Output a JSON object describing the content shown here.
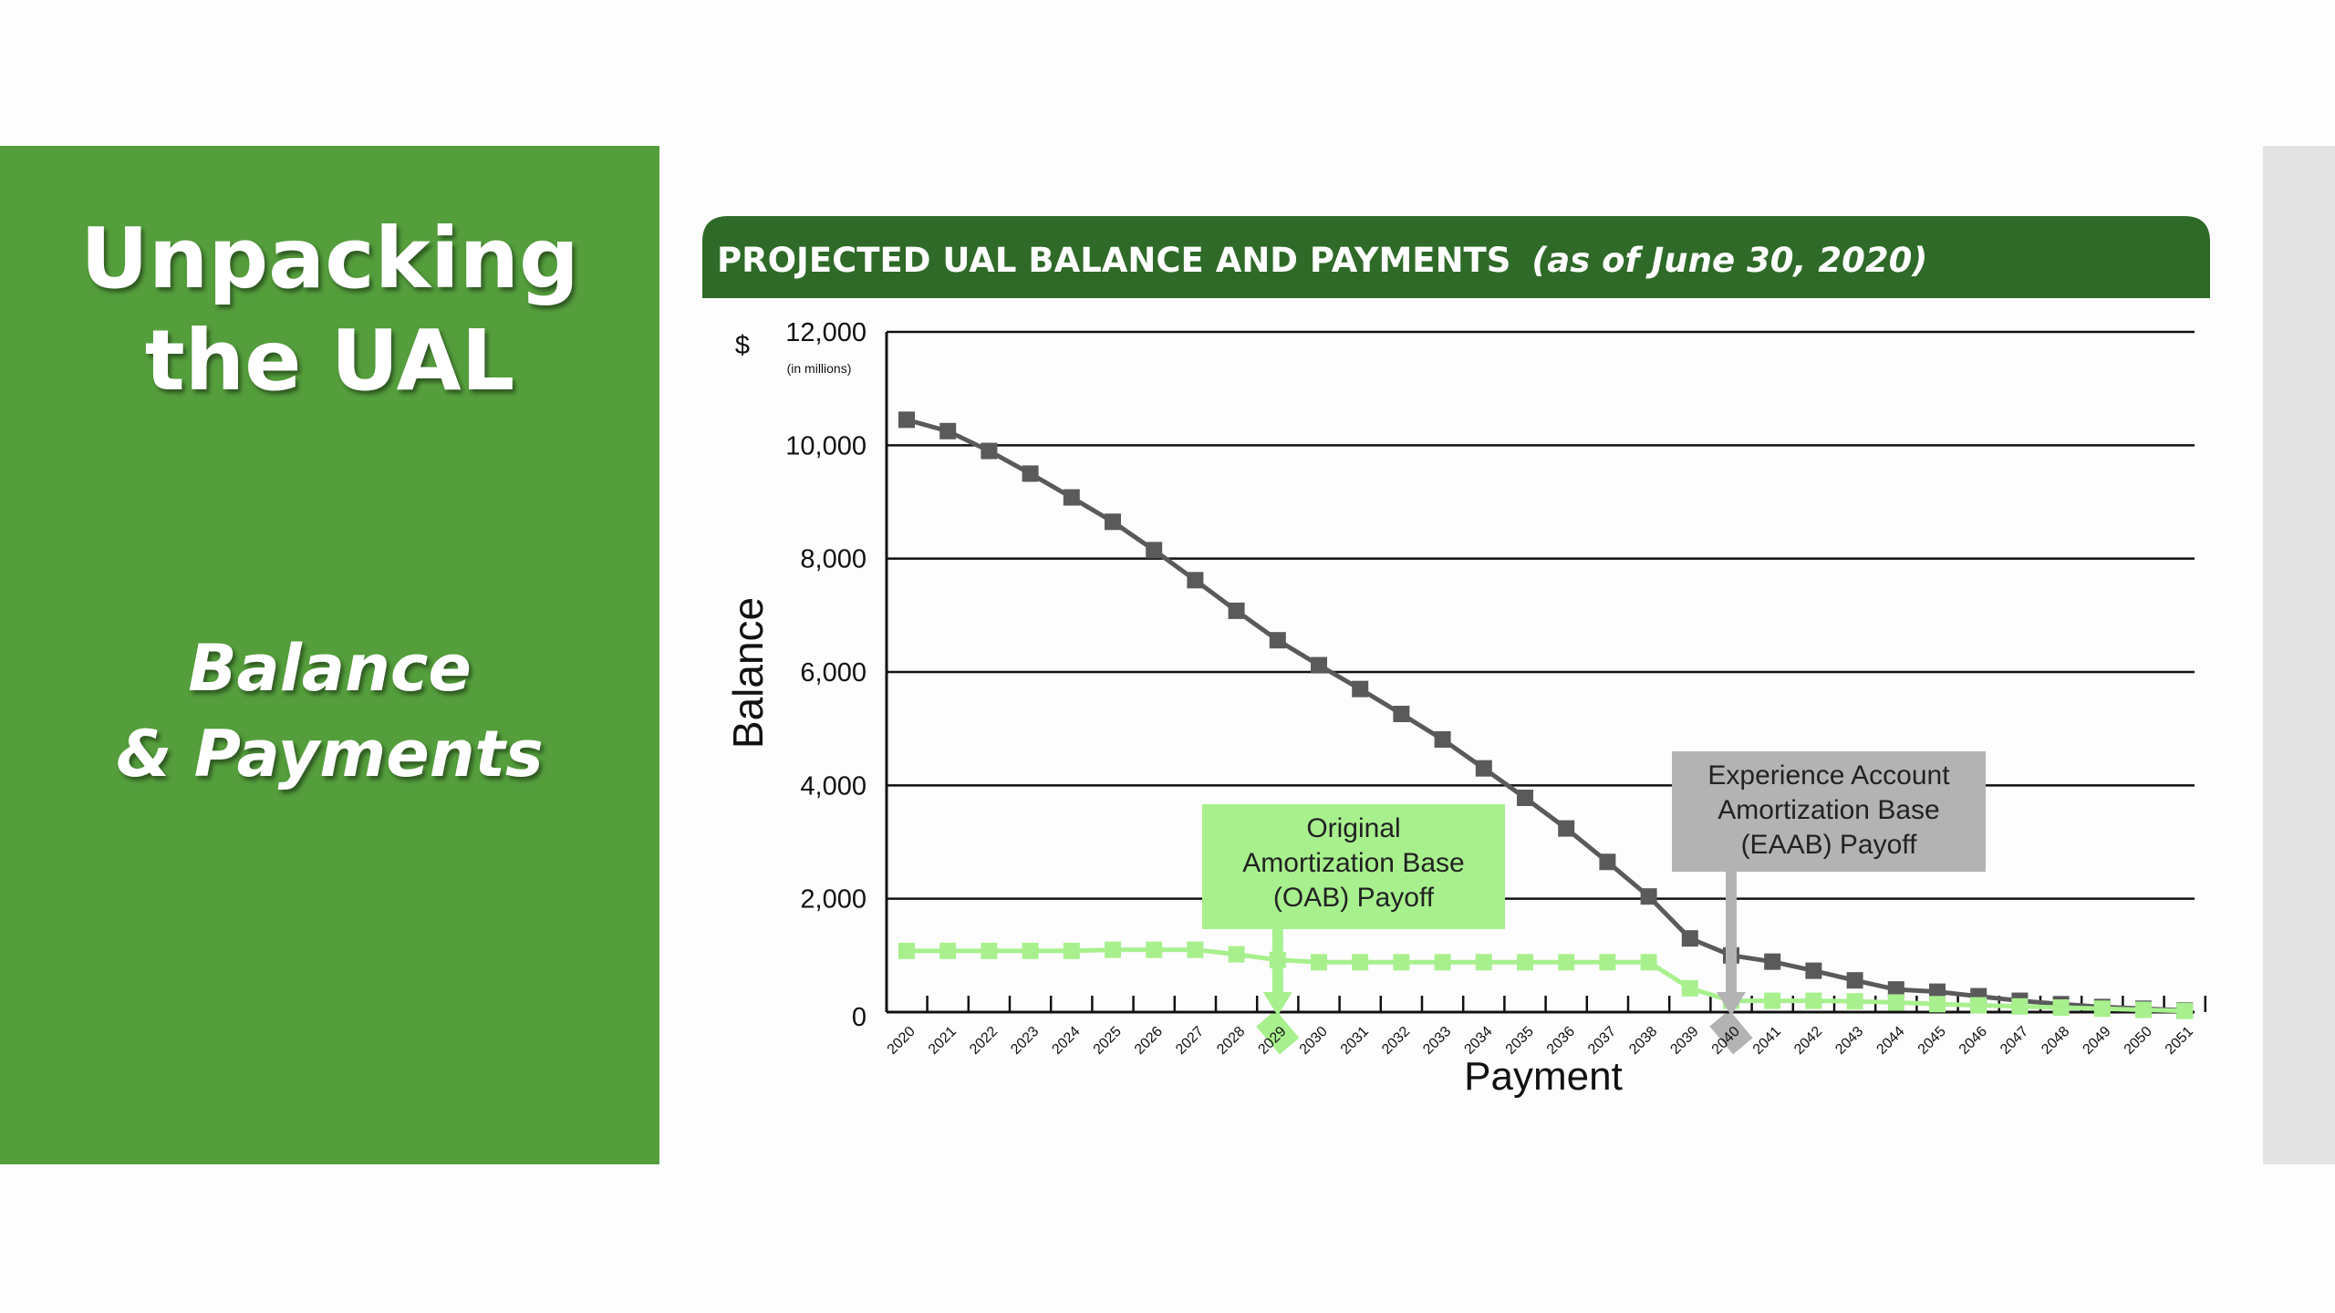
{
  "slide": {
    "title_line1": "Unpacking",
    "title_line2": "the UAL",
    "subtitle_line1": "Balance",
    "subtitle_line2": "& Payments"
  },
  "colors": {
    "panel_green": "#549e3c",
    "banner_green": "#2f6a28",
    "balance_series": "#5a5a5a",
    "payment_series": "#a8f08e",
    "oab_callout": "#a8f08e",
    "eaab_callout": "#b3b3b3"
  },
  "chart_data": {
    "type": "line",
    "title": "PROJECTED UAL BALANCE AND PAYMENTS",
    "subtitle": "(as of June 30, 2020)",
    "ylabel": "Balance",
    "xlabel": "Payment",
    "y_unit_prefix": "$",
    "y_unit_note": "(in millions)",
    "ylim": [
      0,
      12000
    ],
    "yticks": [
      0,
      2000,
      4000,
      6000,
      8000,
      10000,
      12000
    ],
    "ytick_labels": [
      "0",
      "2,000",
      "4,000",
      "6,000",
      "8,000",
      "10,000",
      "12,000"
    ],
    "grid": true,
    "categories": [
      "2020",
      "2021",
      "2022",
      "2023",
      "2024",
      "2025",
      "2026",
      "2027",
      "2028",
      "2029",
      "2030",
      "2031",
      "2032",
      "2033",
      "2034",
      "2035",
      "2036",
      "2037",
      "2038",
      "2039",
      "2040",
      "2041",
      "2042",
      "2043",
      "2044",
      "2045",
      "2046",
      "2047",
      "2048",
      "2049",
      "2050",
      "2051"
    ],
    "series": [
      {
        "values": [
          10450,
          10250,
          9900,
          9500,
          9080,
          8650,
          8150,
          7620,
          7080,
          6560,
          6120,
          5700,
          5260,
          4810,
          4300,
          3780,
          3240,
          2650,
          2040,
          1300,
          1000,
          890,
          730,
          560,
          400,
          360,
          280,
          200,
          140,
          90,
          60,
          30
        ]
      },
      {
        "values": [
          1080,
          1080,
          1080,
          1080,
          1080,
          1100,
          1100,
          1100,
          1020,
          920,
          880,
          880,
          880,
          880,
          880,
          880,
          880,
          880,
          880,
          420,
          200,
          200,
          200,
          190,
          170,
          140,
          120,
          100,
          80,
          60,
          40,
          20
        ]
      }
    ],
    "annotations": [
      {
        "id": "oab",
        "lines": [
          "Original",
          "Amortization Base",
          "(OAB) Payoff"
        ],
        "points_to": "2029"
      },
      {
        "id": "eaab",
        "lines": [
          "Experience Account",
          "Amortization Base",
          "(EAAB) Payoff"
        ],
        "points_to": "2040"
      }
    ]
  }
}
